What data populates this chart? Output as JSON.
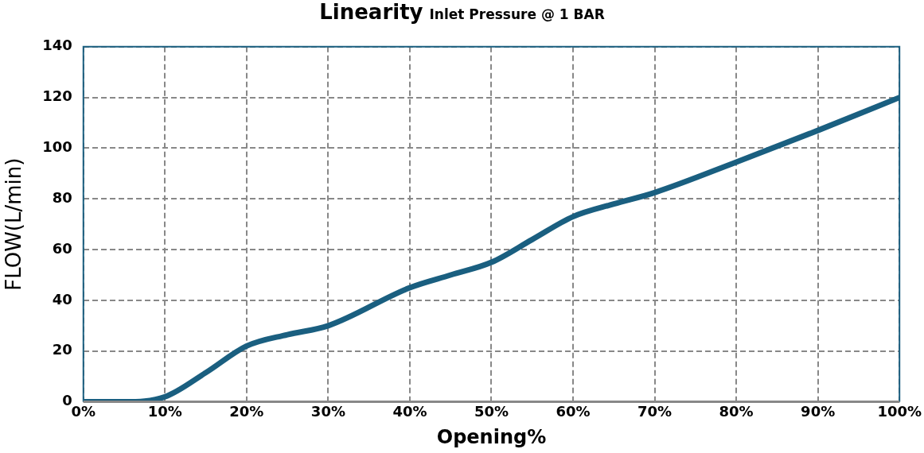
{
  "chart_data": {
    "type": "line",
    "title": "Linearity",
    "subtitle": "Inlet Pressure @ 1 BAR",
    "xlabel": "Opening%",
    "ylabel": "FLOW(L/min)",
    "x": [
      0,
      5,
      10,
      15,
      20,
      25,
      30,
      40,
      45,
      50,
      55,
      60,
      65,
      70,
      80,
      90,
      100
    ],
    "series": [
      {
        "color": "#1a5f80",
        "values": [
          0,
          0,
          2,
          11.5,
          22,
          26.5,
          30,
          45,
          50,
          55,
          64,
          73,
          78,
          82.5,
          94.5,
          107,
          120
        ]
      }
    ],
    "xlim": [
      0,
      100
    ],
    "xticks": [
      {
        "value": 0,
        "label": "0%"
      },
      {
        "value": 10,
        "label": "10%"
      },
      {
        "value": 20,
        "label": "20%"
      },
      {
        "value": 30,
        "label": "30%"
      },
      {
        "value": 40,
        "label": "40%"
      },
      {
        "value": 50,
        "label": "50%"
      },
      {
        "value": 60,
        "label": "60%"
      },
      {
        "value": 70,
        "label": "70%"
      },
      {
        "value": 80,
        "label": "80%"
      },
      {
        "value": 90,
        "label": "90%"
      },
      {
        "value": 100,
        "label": "100%"
      }
    ],
    "ylim": [
      0,
      140
    ],
    "yticks": [
      0,
      20,
      40,
      60,
      80,
      100,
      120,
      140
    ],
    "grid": true,
    "legend": false,
    "marker": "none",
    "line_style": "solid"
  }
}
